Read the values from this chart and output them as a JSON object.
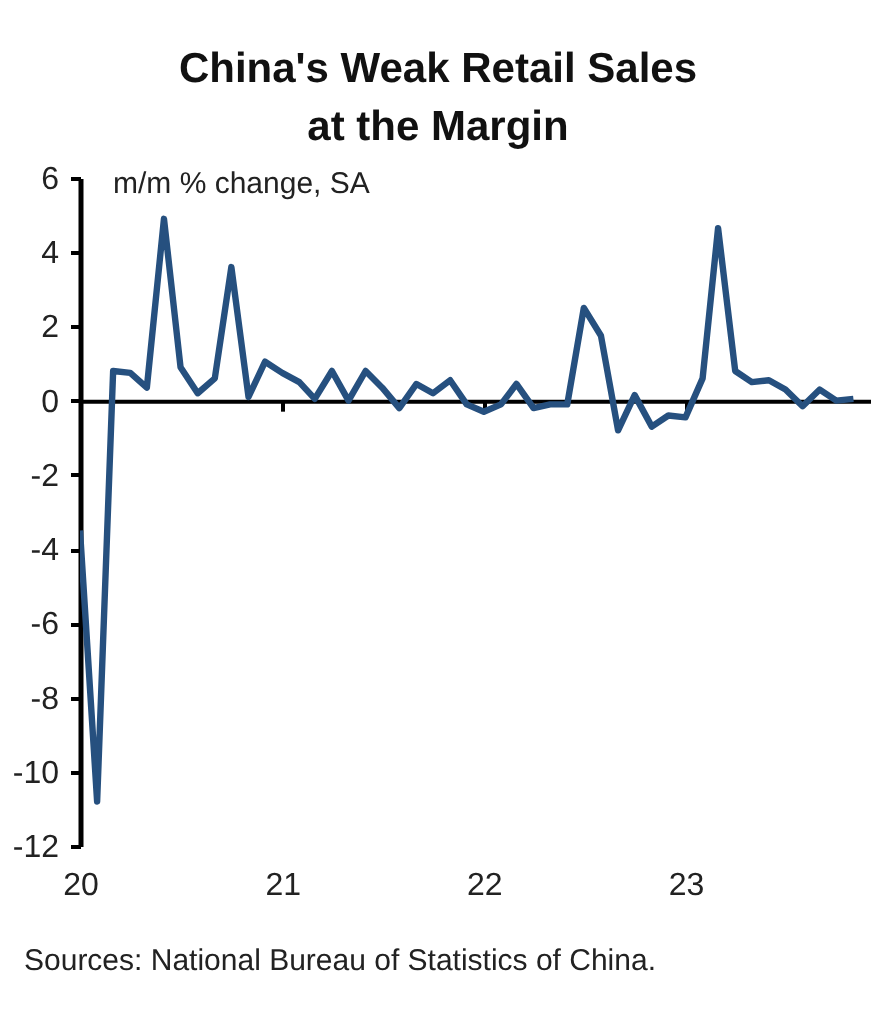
{
  "chart_data": {
    "type": "line",
    "title": "China's Weak Retail Sales at the Margin",
    "ylabel": "m/m % change, SA",
    "annotations": [
      "Sources: National Bureau of Statistics of China."
    ],
    "x": [
      "2020-01",
      "2020-02",
      "2020-03",
      "2020-04",
      "2020-05",
      "2020-06",
      "2020-07",
      "2020-08",
      "2020-09",
      "2020-10",
      "2020-11",
      "2020-12",
      "2021-01",
      "2021-02",
      "2021-03",
      "2021-04",
      "2021-05",
      "2021-06",
      "2021-07",
      "2021-08",
      "2021-09",
      "2021-10",
      "2021-11",
      "2021-12",
      "2022-01",
      "2022-02",
      "2022-03",
      "2022-04",
      "2022-05",
      "2022-06",
      "2022-07",
      "2022-08",
      "2022-09",
      "2022-10",
      "2022-11",
      "2022-12",
      "2023-01",
      "2023-02",
      "2023-03",
      "2023-04",
      "2023-05",
      "2023-06",
      "2023-07",
      "2023-08",
      "2023-09",
      "2023-10",
      "2023-11"
    ],
    "series": [
      {
        "color": "#26507f",
        "values": [
          -3.5,
          -10.8,
          0.8,
          0.75,
          0.35,
          4.9,
          0.9,
          0.2,
          0.6,
          3.6,
          0.1,
          1.05,
          0.75,
          0.5,
          0.05,
          0.8,
          0,
          0.8,
          0.35,
          -0.2,
          0.45,
          0.2,
          0.55,
          -0.1,
          -0.3,
          -0.1,
          0.45,
          -0.2,
          -0.1,
          -0.1,
          2.5,
          1.75,
          -0.8,
          0.15,
          -0.7,
          -0.4,
          -0.45,
          0.6,
          4.65,
          0.8,
          0.5,
          0.55,
          0.3,
          -0.15,
          0.3,
          0,
          0.05
        ]
      }
    ],
    "xlim": [
      "2020-01",
      "2023-12"
    ],
    "xticks": [
      {
        "value": "2020-01",
        "label": "20"
      },
      {
        "value": "2021-01",
        "label": "21"
      },
      {
        "value": "2022-01",
        "label": "22"
      },
      {
        "value": "2023-01",
        "label": "23"
      }
    ],
    "ylim": [
      -12,
      6
    ],
    "yticks": [
      -12,
      -10,
      -8,
      -6,
      -4,
      -2,
      0,
      2,
      4,
      6
    ],
    "marker": "none",
    "line_style": "solid"
  }
}
